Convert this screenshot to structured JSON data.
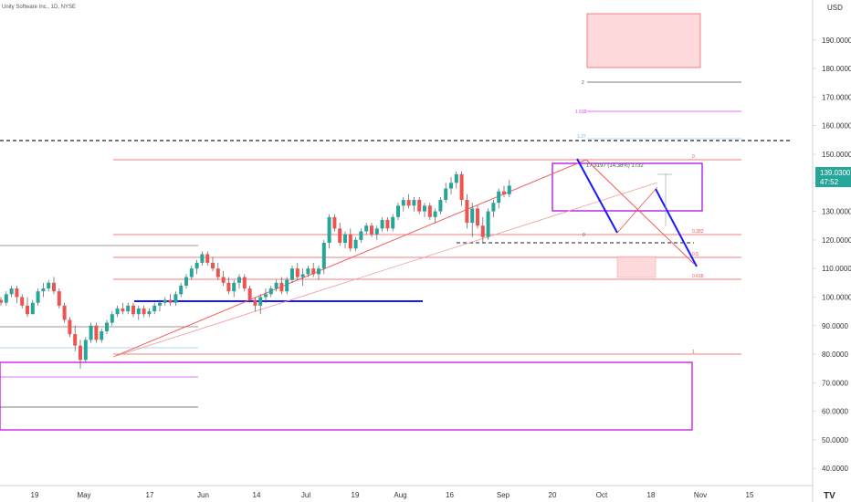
{
  "header": {
    "title": "Unity Software Inc., 1D, NYSE"
  },
  "axis": {
    "currency": "USD"
  },
  "price_label": {
    "value": "139.0300",
    "countdown": "47:52",
    "color": "#26a69a"
  },
  "measure_label": "17.3197 (14.38%) 1732",
  "colors": {
    "up": "#26a69a",
    "down": "#ef5350",
    "wick": "#555555"
  },
  "chart_data": {
    "type": "candlestick",
    "title": "Unity Software Inc., 1D, NYSE",
    "y_unit": "USD",
    "ylim": [
      34,
      204
    ],
    "y_ticks": [
      40,
      50,
      60,
      70,
      80,
      90,
      100,
      110,
      120,
      130,
      140,
      150,
      160,
      170,
      180,
      190
    ],
    "x_ticks": [
      {
        "label": "19",
        "day": 0
      },
      {
        "label": "May",
        "day": 12
      },
      {
        "label": "17",
        "day": 28
      },
      {
        "label": "Jun",
        "day": 41
      },
      {
        "label": "14",
        "day": 54
      },
      {
        "label": "Jul",
        "day": 66
      },
      {
        "label": "19",
        "day": 78
      },
      {
        "label": "Aug",
        "day": 89
      },
      {
        "label": "16",
        "day": 101
      },
      {
        "label": "Sep",
        "day": 114
      },
      {
        "label": "20",
        "day": 126
      },
      {
        "label": "Oct",
        "day": 138
      },
      {
        "label": "18",
        "day": 150
      },
      {
        "label": "Nov",
        "day": 162
      },
      {
        "label": "15",
        "day": 174
      }
    ],
    "candles": [
      [
        99,
        100,
        97,
        98
      ],
      [
        98,
        102,
        97,
        101
      ],
      [
        101,
        104,
        100,
        103
      ],
      [
        103,
        104,
        98,
        100
      ],
      [
        100,
        101,
        96,
        97
      ],
      [
        97,
        100,
        93,
        94
      ],
      [
        94,
        99,
        94,
        98
      ],
      [
        98,
        103,
        97,
        102
      ],
      [
        102,
        105,
        100,
        103
      ],
      [
        103,
        106,
        102,
        105
      ],
      [
        105,
        107,
        101,
        102
      ],
      [
        102,
        103,
        96,
        97
      ],
      [
        97,
        98,
        91,
        92
      ],
      [
        92,
        93,
        86,
        87
      ],
      [
        87,
        90,
        81,
        83
      ],
      [
        83,
        85,
        75,
        78
      ],
      [
        78,
        86,
        77,
        85
      ],
      [
        85,
        91,
        84,
        90
      ],
      [
        90,
        91,
        84,
        85
      ],
      [
        85,
        89,
        84,
        88
      ],
      [
        88,
        92,
        87,
        91
      ],
      [
        91,
        95,
        90,
        94
      ],
      [
        94,
        97,
        93,
        96
      ],
      [
        96,
        98,
        94,
        95
      ],
      [
        95,
        98,
        94,
        97
      ],
      [
        97,
        98,
        93,
        94
      ],
      [
        94,
        97,
        92,
        96
      ],
      [
        96,
        97,
        93,
        94
      ],
      [
        94,
        96,
        93,
        95
      ],
      [
        95,
        98,
        94,
        97
      ],
      [
        97,
        99,
        95,
        98
      ],
      [
        98,
        100,
        97,
        99
      ],
      [
        99,
        101,
        97,
        98
      ],
      [
        98,
        102,
        97,
        101
      ],
      [
        101,
        105,
        100,
        104
      ],
      [
        104,
        108,
        103,
        107
      ],
      [
        107,
        111,
        106,
        110
      ],
      [
        110,
        113,
        108,
        112
      ],
      [
        112,
        116,
        111,
        115
      ],
      [
        115,
        116,
        111,
        112
      ],
      [
        112,
        114,
        109,
        110
      ],
      [
        110,
        112,
        106,
        107
      ],
      [
        107,
        109,
        104,
        105
      ],
      [
        105,
        107,
        101,
        102
      ],
      [
        102,
        106,
        100,
        105
      ],
      [
        105,
        108,
        103,
        107
      ],
      [
        107,
        108,
        102,
        103
      ],
      [
        103,
        104,
        98,
        99
      ],
      [
        99,
        100,
        95,
        97
      ],
      [
        97,
        101,
        94,
        100
      ],
      [
        100,
        103,
        98,
        101
      ],
      [
        101,
        104,
        100,
        103
      ],
      [
        103,
        106,
        102,
        105
      ],
      [
        105,
        107,
        101,
        102
      ],
      [
        102,
        107,
        101,
        106
      ],
      [
        106,
        111,
        105,
        110
      ],
      [
        110,
        112,
        106,
        107
      ],
      [
        107,
        110,
        104,
        108
      ],
      [
        108,
        111,
        107,
        110
      ],
      [
        110,
        112,
        107,
        108
      ],
      [
        108,
        111,
        106,
        110
      ],
      [
        110,
        120,
        108,
        119
      ],
      [
        119,
        129,
        117,
        128
      ],
      [
        128,
        129,
        123,
        124
      ],
      [
        124,
        126,
        118,
        119
      ],
      [
        119,
        123,
        117,
        122
      ],
      [
        122,
        124,
        116,
        117
      ],
      [
        117,
        121,
        116,
        120
      ],
      [
        120,
        124,
        119,
        123
      ],
      [
        123,
        126,
        122,
        125
      ],
      [
        125,
        126,
        121,
        122
      ],
      [
        122,
        125,
        120,
        124
      ],
      [
        124,
        128,
        123,
        127
      ],
      [
        127,
        128,
        123,
        124
      ],
      [
        124,
        129,
        123,
        128
      ],
      [
        128,
        133,
        127,
        132
      ],
      [
        132,
        135,
        130,
        134
      ],
      [
        134,
        136,
        131,
        132
      ],
      [
        132,
        135,
        130,
        134
      ],
      [
        134,
        135,
        129,
        130
      ],
      [
        130,
        133,
        128,
        132
      ],
      [
        132,
        133,
        127,
        128
      ],
      [
        128,
        131,
        126,
        130
      ],
      [
        130,
        135,
        129,
        134
      ],
      [
        134,
        140,
        133,
        138
      ],
      [
        138,
        142,
        136,
        140
      ],
      [
        140,
        144,
        138,
        143
      ],
      [
        143,
        144,
        132,
        134
      ],
      [
        134,
        136,
        124,
        126
      ],
      [
        126,
        133,
        121,
        131
      ],
      [
        131,
        132,
        124,
        125
      ],
      [
        125,
        128,
        119,
        121
      ],
      [
        121,
        131,
        120,
        130
      ],
      [
        130,
        134,
        128,
        133
      ],
      [
        133,
        138,
        131,
        137
      ],
      [
        137,
        139,
        135,
        136
      ],
      [
        136,
        141,
        135,
        139
      ]
    ],
    "annotations": {
      "fib_levels": [
        {
          "label": "0",
          "value": 144
        },
        {
          "label": "0.382",
          "value": 117.5
        },
        {
          "label": "0.5",
          "value": 110
        },
        {
          "label": "0.618",
          "value": 102
        },
        {
          "label": "1",
          "value": 78
        },
        {
          "label": "1.618",
          "value": 160
        },
        {
          "label": "2",
          "value": 170
        },
        {
          "label": "1.27",
          "value": 151
        }
      ],
      "dashed_level": 150
    }
  }
}
